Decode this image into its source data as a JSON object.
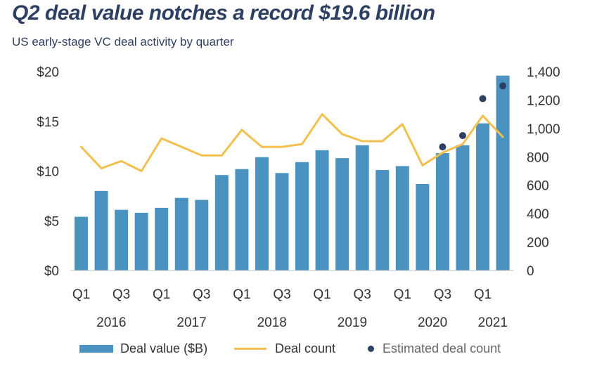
{
  "title": "Q2 deal value notches a record $19.6 billion",
  "subtitle": "US early-stage VC deal activity by quarter",
  "colors": {
    "bar": "#4a92c0",
    "line": "#f2c04e",
    "dot": "#2d3f63",
    "text": "#333333",
    "title": "#2d3f63"
  },
  "chart_data": {
    "type": "bar",
    "quarter_labels": [
      "Q1",
      "",
      "Q3",
      "",
      "Q1",
      "",
      "Q3",
      "",
      "Q1",
      "",
      "Q3",
      "",
      "Q1",
      "",
      "Q3",
      "",
      "Q1",
      "",
      "Q3",
      "",
      "Q1",
      ""
    ],
    "years": [
      {
        "label": "2016",
        "first": 0,
        "last": 3
      },
      {
        "label": "2017",
        "first": 4,
        "last": 7
      },
      {
        "label": "2018",
        "first": 8,
        "last": 11
      },
      {
        "label": "2019",
        "first": 12,
        "last": 15
      },
      {
        "label": "2020",
        "first": 16,
        "last": 19
      },
      {
        "label": "2021",
        "first": 20,
        "last": 21
      }
    ],
    "series": [
      {
        "name": "Deal value ($B)",
        "type": "bar",
        "axis": "left",
        "values": [
          5.4,
          8.0,
          6.1,
          5.8,
          6.3,
          7.3,
          7.1,
          9.6,
          10.2,
          11.4,
          9.8,
          10.9,
          12.1,
          11.3,
          12.6,
          10.1,
          10.5,
          8.7,
          11.8,
          12.6,
          14.8,
          19.6
        ]
      },
      {
        "name": "Deal count",
        "type": "line",
        "axis": "right",
        "values": [
          870,
          720,
          770,
          700,
          930,
          870,
          810,
          810,
          990,
          870,
          870,
          890,
          1100,
          960,
          910,
          910,
          1030,
          740,
          830,
          890,
          1090,
          940
        ]
      },
      {
        "name": "Estimated deal count",
        "type": "scatter",
        "axis": "right",
        "values": [
          null,
          null,
          null,
          null,
          null,
          null,
          null,
          null,
          null,
          null,
          null,
          null,
          null,
          null,
          null,
          null,
          null,
          null,
          870,
          950,
          1210,
          1300
        ]
      }
    ],
    "left_axis": {
      "ticks": [
        "$0",
        "$5",
        "$10",
        "$15",
        "$20"
      ],
      "tick_values": [
        0,
        5,
        10,
        15,
        20
      ],
      "ylim": [
        0,
        20
      ]
    },
    "right_axis": {
      "ticks": [
        "0",
        "200",
        "400",
        "600",
        "800",
        "1,000",
        "1,200",
        "1,400"
      ],
      "tick_values": [
        0,
        200,
        400,
        600,
        800,
        1000,
        1200,
        1400
      ],
      "ylim": [
        0,
        1400
      ]
    },
    "grid": false,
    "legend_position": "bottom"
  },
  "legend": [
    {
      "label": "Deal value ($B)"
    },
    {
      "label": "Deal count"
    },
    {
      "label": "Estimated deal count"
    }
  ]
}
